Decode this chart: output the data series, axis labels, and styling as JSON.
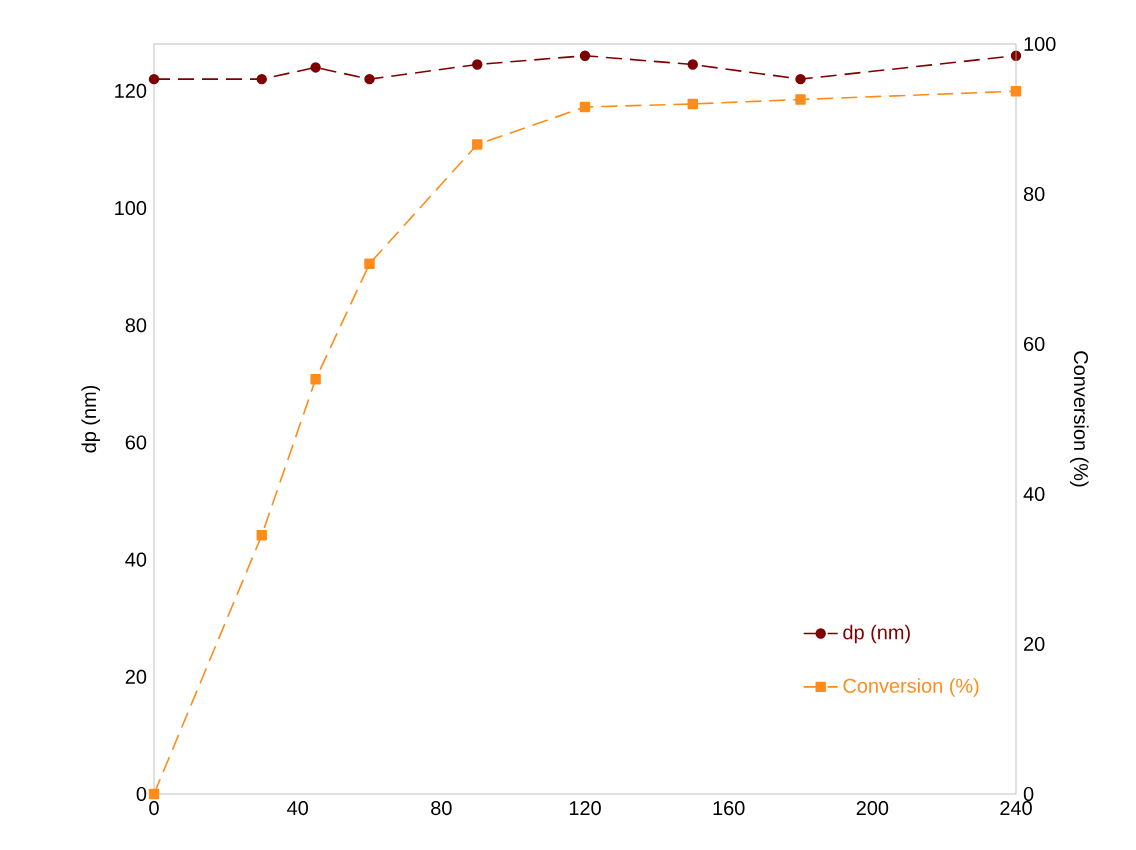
{
  "chart_data": {
    "type": "line",
    "xlabel": null,
    "ylabel": "dp (nm)",
    "y2label": "Conversion (%)",
    "x": [
      0,
      30,
      45,
      60,
      90,
      120,
      150,
      180,
      240
    ],
    "series": [
      {
        "name": "dp (nm)",
        "color": "#7f0000",
        "marker": "circle",
        "line_style": "dashed",
        "values": [
          122,
          122,
          124,
          122,
          124.5,
          126,
          124.5,
          122,
          126
        ]
      },
      {
        "name": "Conversion (%)",
        "color": "#ff8c1a",
        "marker": "square",
        "line_style": "dashed",
        "axis": "y2",
        "values": [
          0,
          34.5,
          55.3,
          70.7,
          86.6,
          91.6,
          92,
          92.6,
          93.7
        ]
      }
    ],
    "xlim": [
      0,
      240
    ],
    "xticks": [
      0,
      40,
      80,
      120,
      160,
      200,
      240
    ],
    "ylim": [
      0,
      128
    ],
    "yticks": [
      0,
      20,
      40,
      60,
      80,
      100,
      120
    ],
    "y2lim": [
      0,
      100
    ],
    "y2ticks": [
      0,
      20,
      40,
      60,
      80,
      100
    ],
    "grid": false,
    "legend": "bottom right"
  }
}
